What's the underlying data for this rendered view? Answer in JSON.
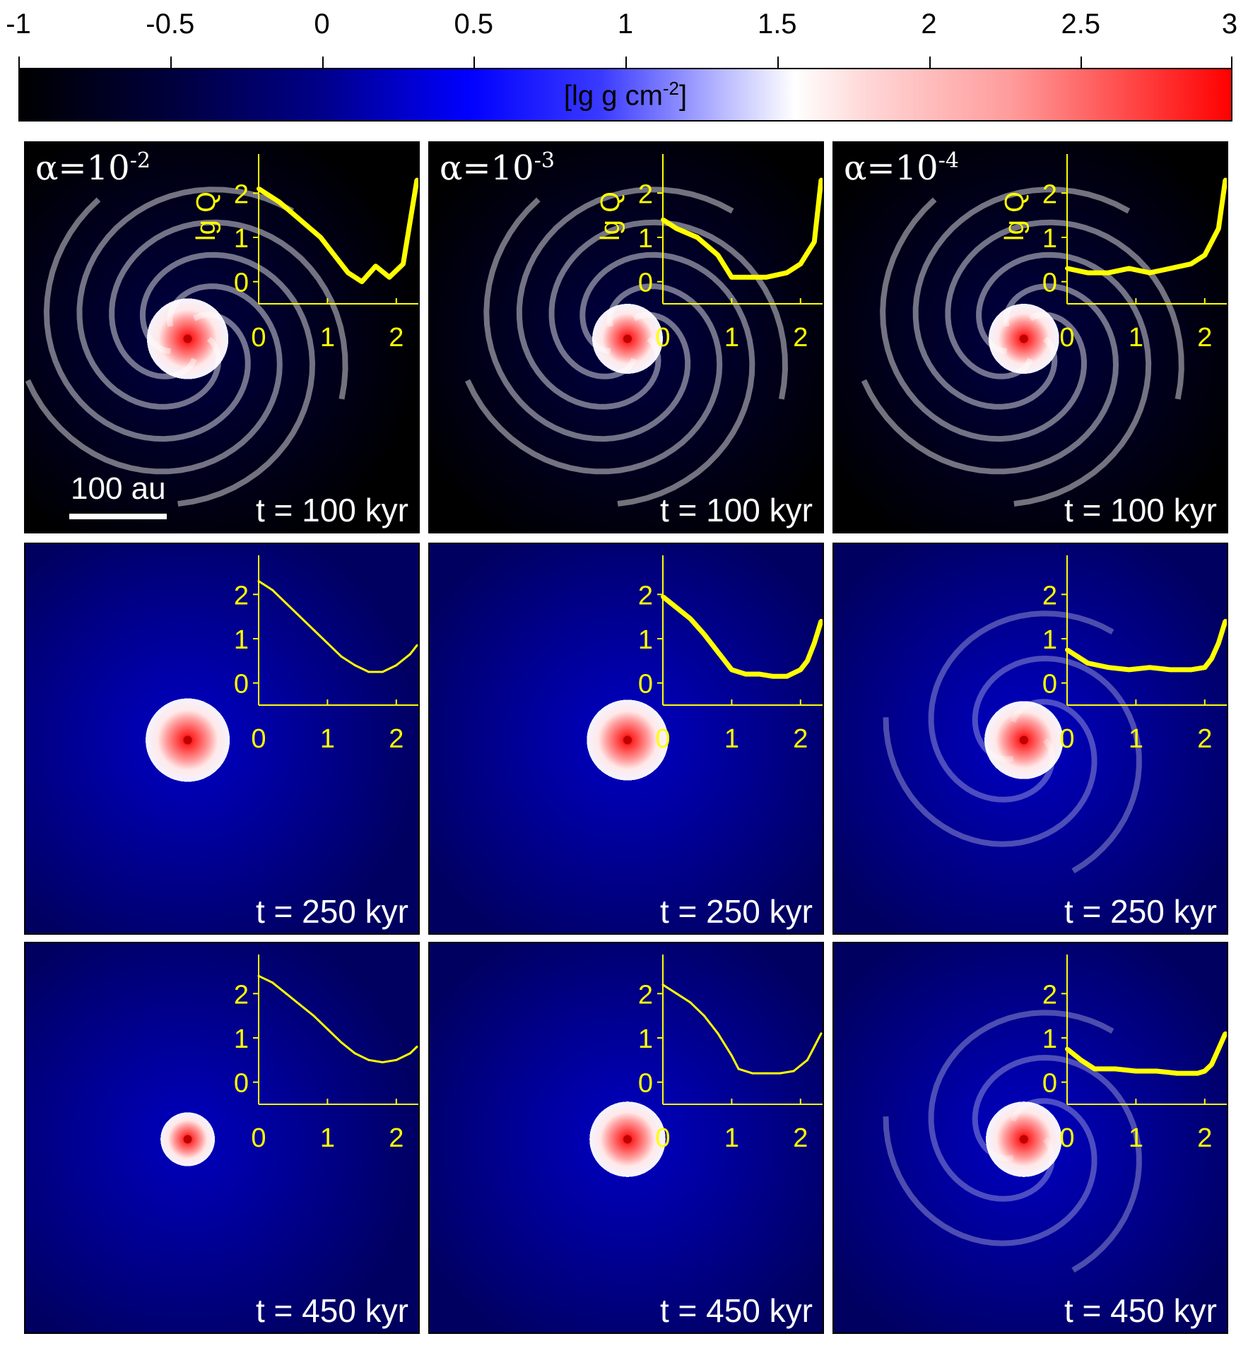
{
  "colorbar": {
    "ticks": [
      "-1",
      "-0.5",
      "0",
      "0.5",
      "1",
      "1.5",
      "2",
      "2.5",
      "3"
    ],
    "min": -1,
    "max": 3,
    "unit_label": "[lg g cm",
    "unit_exp": "-2",
    "unit_close": "]",
    "colors": {
      "low": "#000000",
      "mid_blue": "#0000ff",
      "white": "#ffffff",
      "high": "#ff0000"
    }
  },
  "columns": [
    {
      "alpha_prefix": "α=10",
      "alpha_exp": "-2"
    },
    {
      "alpha_prefix": "α=10",
      "alpha_exp": "-3"
    },
    {
      "alpha_prefix": "α=10",
      "alpha_exp": "-4"
    }
  ],
  "rows": [
    {
      "time_label": "t = 100 kyr"
    },
    {
      "time_label": "t = 250 kyr"
    },
    {
      "time_label": "t = 450 kyr"
    }
  ],
  "scale_bar": {
    "label": "100 au"
  },
  "inset": {
    "ylabel": "lg Q",
    "xticks": [
      "0",
      "1",
      "2"
    ],
    "yticks": [
      "0",
      "1",
      "2"
    ],
    "xlim": [
      0,
      2.3
    ],
    "ylim": [
      -0.5,
      2.5
    ],
    "color": "#ffff00"
  },
  "chart_data": [
    {
      "type": "line",
      "panel": "alpha=10^-2, t=100 kyr",
      "x": [
        0,
        0.3,
        0.6,
        0.9,
        1.1,
        1.3,
        1.5,
        1.7,
        1.9,
        2.1,
        2.3
      ],
      "y": [
        2.1,
        1.8,
        1.4,
        1.0,
        0.6,
        0.2,
        0.0,
        0.35,
        0.1,
        0.4,
        2.3
      ],
      "noisy": true
    },
    {
      "type": "line",
      "panel": "alpha=10^-3, t=100 kyr",
      "x": [
        0,
        0.2,
        0.5,
        0.8,
        1.0,
        1.2,
        1.5,
        1.8,
        2.0,
        2.2,
        2.3
      ],
      "y": [
        1.4,
        1.2,
        1.0,
        0.6,
        0.1,
        0.1,
        0.1,
        0.2,
        0.4,
        0.9,
        2.3
      ],
      "noisy": true
    },
    {
      "type": "line",
      "panel": "alpha=10^-4, t=100 kyr",
      "x": [
        0,
        0.3,
        0.6,
        0.9,
        1.2,
        1.5,
        1.8,
        2.0,
        2.2,
        2.3
      ],
      "y": [
        0.3,
        0.2,
        0.2,
        0.3,
        0.2,
        0.3,
        0.4,
        0.6,
        1.2,
        2.3
      ],
      "noisy": true
    },
    {
      "type": "line",
      "panel": "alpha=10^-2, t=250 kyr",
      "x": [
        0,
        0.2,
        0.4,
        0.6,
        0.8,
        1.0,
        1.2,
        1.4,
        1.6,
        1.8,
        2.0,
        2.2,
        2.3
      ],
      "y": [
        2.3,
        2.1,
        1.8,
        1.5,
        1.2,
        0.9,
        0.6,
        0.4,
        0.25,
        0.25,
        0.4,
        0.65,
        0.85
      ],
      "noisy": false
    },
    {
      "type": "line",
      "panel": "alpha=10^-3, t=250 kyr",
      "x": [
        0,
        0.2,
        0.4,
        0.6,
        0.8,
        1.0,
        1.2,
        1.4,
        1.6,
        1.8,
        2.0,
        2.1,
        2.2,
        2.3
      ],
      "y": [
        1.95,
        1.7,
        1.45,
        1.1,
        0.7,
        0.3,
        0.2,
        0.2,
        0.15,
        0.15,
        0.3,
        0.5,
        0.9,
        1.4
      ],
      "noisy": true
    },
    {
      "type": "line",
      "panel": "alpha=10^-4, t=250 kyr",
      "x": [
        0,
        0.3,
        0.6,
        0.9,
        1.2,
        1.5,
        1.8,
        2.0,
        2.1,
        2.2,
        2.3
      ],
      "y": [
        0.75,
        0.45,
        0.35,
        0.3,
        0.35,
        0.3,
        0.3,
        0.35,
        0.55,
        0.9,
        1.4
      ],
      "noisy": true
    },
    {
      "type": "line",
      "panel": "alpha=10^-2, t=450 kyr",
      "x": [
        0,
        0.2,
        0.4,
        0.6,
        0.8,
        1.0,
        1.2,
        1.4,
        1.6,
        1.8,
        2.0,
        2.2,
        2.3
      ],
      "y": [
        2.4,
        2.25,
        2.0,
        1.75,
        1.5,
        1.2,
        0.9,
        0.65,
        0.5,
        0.45,
        0.5,
        0.65,
        0.8
      ],
      "noisy": false
    },
    {
      "type": "line",
      "panel": "alpha=10^-3, t=450 kyr",
      "x": [
        0,
        0.2,
        0.4,
        0.6,
        0.8,
        1.0,
        1.1,
        1.3,
        1.5,
        1.7,
        1.9,
        2.1,
        2.2,
        2.3
      ],
      "y": [
        2.2,
        2.0,
        1.8,
        1.5,
        1.1,
        0.6,
        0.3,
        0.2,
        0.2,
        0.2,
        0.25,
        0.5,
        0.8,
        1.1
      ],
      "noisy": false
    },
    {
      "type": "line",
      "panel": "alpha=10^-4, t=450 kyr",
      "x": [
        0,
        0.2,
        0.4,
        0.7,
        1.0,
        1.3,
        1.6,
        1.9,
        2.0,
        2.1,
        2.2,
        2.3
      ],
      "y": [
        0.75,
        0.5,
        0.3,
        0.3,
        0.25,
        0.25,
        0.2,
        0.2,
        0.25,
        0.4,
        0.75,
        1.1
      ],
      "noisy": true
    }
  ]
}
